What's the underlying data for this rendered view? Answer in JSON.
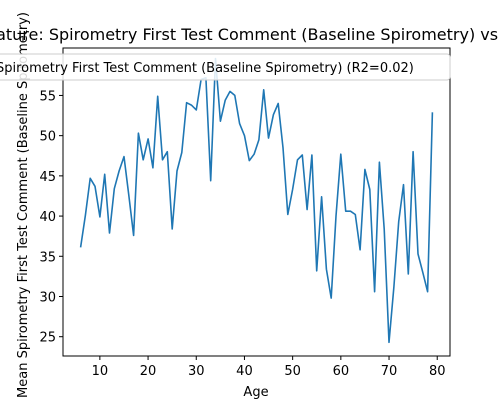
{
  "chart_data": {
    "type": "line",
    "title": "Feature: Spirometry First Test Comment (Baseline Spirometry) vs Age",
    "xlabel": "Age",
    "ylabel": "Mean Spirometry First Test Comment (Baseline Spirometry)",
    "xlim": [
      2.35,
      82.65
    ],
    "ylim": [
      22.6,
      60.9
    ],
    "xticks": [
      10,
      20,
      30,
      40,
      50,
      60,
      70,
      80
    ],
    "yticks": [
      25,
      30,
      35,
      40,
      45,
      50,
      55
    ],
    "grid": false,
    "legend_position": "top",
    "series": [
      {
        "name": "Spirometry First Test Comment (Baseline Spirometry) (R2=0.02)",
        "color": "#1f77b4",
        "x": [
          6,
          7,
          8,
          9,
          10,
          11,
          12,
          13,
          14,
          15,
          16,
          17,
          18,
          19,
          20,
          21,
          22,
          23,
          24,
          25,
          26,
          27,
          28,
          29,
          30,
          31,
          32,
          33,
          34,
          35,
          36,
          37,
          38,
          39,
          40,
          41,
          42,
          43,
          44,
          45,
          46,
          47,
          48,
          49,
          50,
          51,
          52,
          53,
          54,
          55,
          56,
          57,
          58,
          59,
          60,
          61,
          62,
          63,
          64,
          65,
          66,
          67,
          68,
          69,
          70,
          71,
          72,
          73,
          74,
          75,
          76,
          77,
          78,
          79
        ],
        "y": [
          36.1,
          40.1,
          44.7,
          43.7,
          39.9,
          45.2,
          37.9,
          43.4,
          45.6,
          47.4,
          42.6,
          37.6,
          50.3,
          47.0,
          49.6,
          46.0,
          54.9,
          47.0,
          48.0,
          38.4,
          45.6,
          47.9,
          54.1,
          53.8,
          53.2,
          57.0,
          57.2,
          44.4,
          59.6,
          51.8,
          54.4,
          55.5,
          55.0,
          51.5,
          50.0,
          46.9,
          47.7,
          49.5,
          55.7,
          49.7,
          52.6,
          54.0,
          48.5,
          40.2,
          43.3,
          47.0,
          47.6,
          40.8,
          47.6,
          33.2,
          42.4,
          33.4,
          29.8,
          40.0,
          47.7,
          40.6,
          40.6,
          40.2,
          35.8,
          45.8,
          43.3,
          30.6,
          46.7,
          38.4,
          24.3,
          31.2,
          39.3,
          43.9,
          32.8,
          48.0,
          35.3,
          33.0,
          30.6,
          52.9
        ]
      }
    ]
  }
}
